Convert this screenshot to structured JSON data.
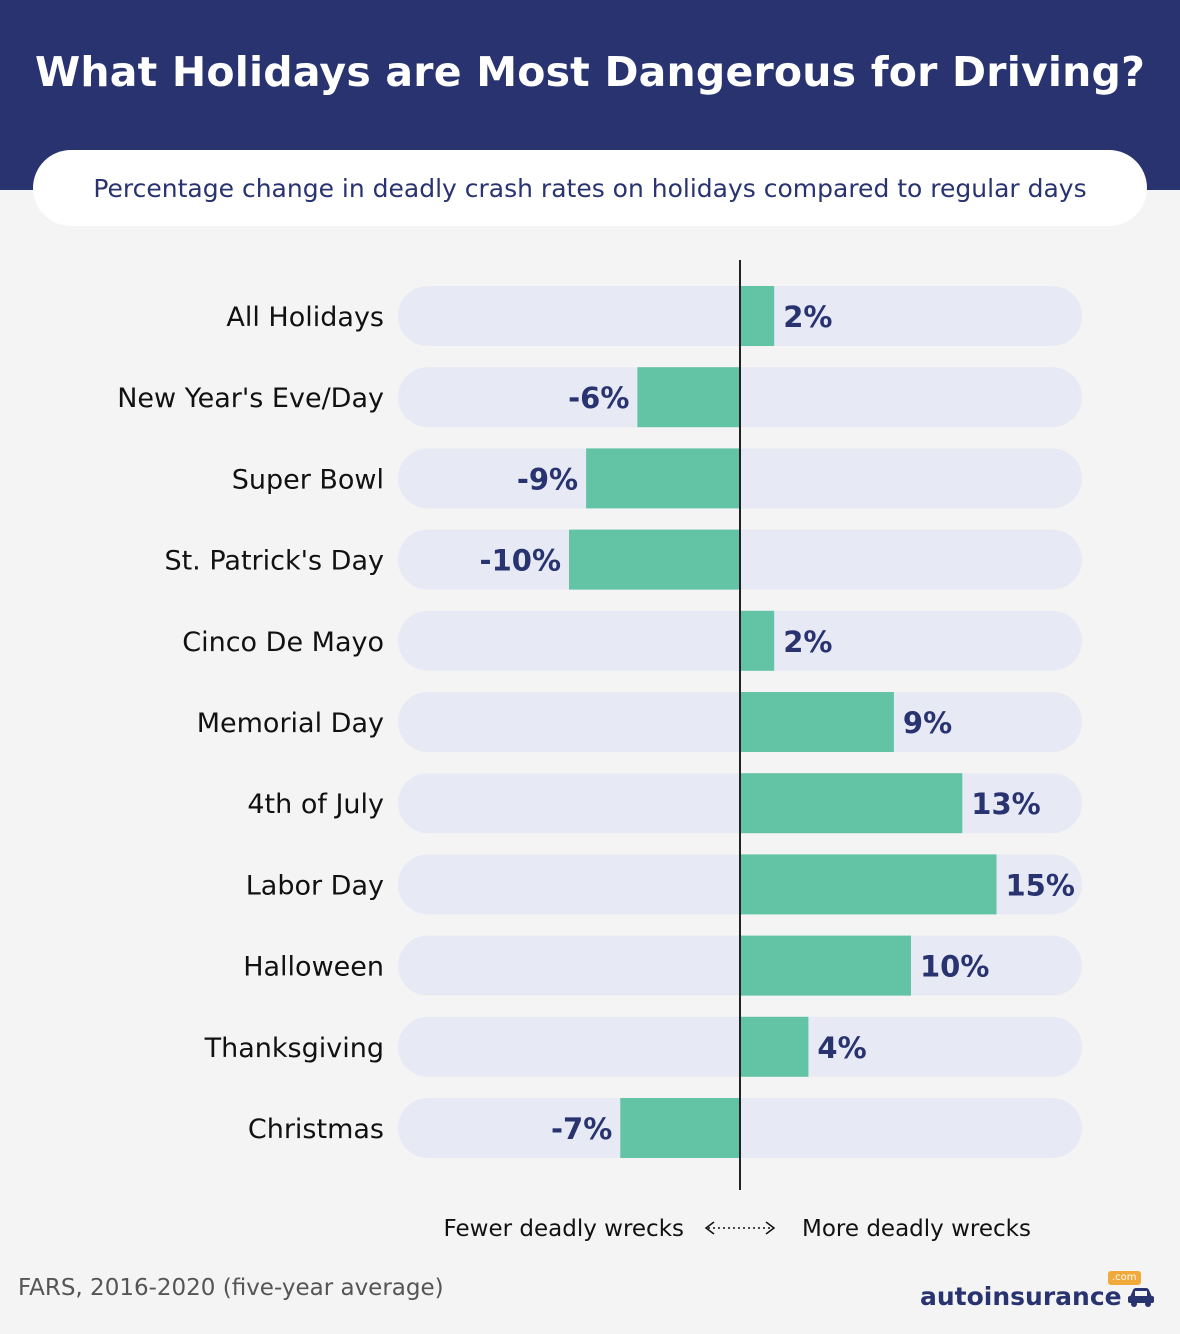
{
  "header": {
    "title": "What Holidays are Most Dangerous for Driving?",
    "subtitle": "Percentage change in deadly crash rates on holidays compared to regular days"
  },
  "chart_data": {
    "type": "bar",
    "orientation": "horizontal",
    "title": "What Holidays are Most Dangerous for Driving?",
    "subtitle": "Percentage change in deadly crash rates on holidays compared to regular days",
    "categories": [
      "All Holidays",
      "New Year's Eve/Day",
      "Super Bowl",
      "St. Patrick's Day",
      "Cinco De Mayo",
      "Memorial Day",
      "4th of July",
      "Labor Day",
      "Halloween",
      "Thanksgiving",
      "Christmas"
    ],
    "values": [
      2,
      -6,
      -9,
      -10,
      2,
      9,
      13,
      15,
      10,
      4,
      -7
    ],
    "value_labels": [
      "2%",
      "-6%",
      "-9%",
      "-10%",
      "2%",
      "9%",
      "13%",
      "15%",
      "10%",
      "4%",
      "-7%"
    ],
    "xlim": [
      -20,
      20
    ],
    "unit": "%",
    "axis_hint_left": "Fewer deadly wrecks",
    "axis_hint_right": "More deadly wrecks",
    "colors": {
      "bar": "#62c4a4",
      "track": "#e7e9f4",
      "label": "#283370",
      "value": "#283370",
      "axis": "#222222"
    }
  },
  "footer": {
    "source": "FARS, 2016-2020 (five-year average)",
    "logo_text": "autoinsurance",
    "logo_badge": ".com"
  }
}
